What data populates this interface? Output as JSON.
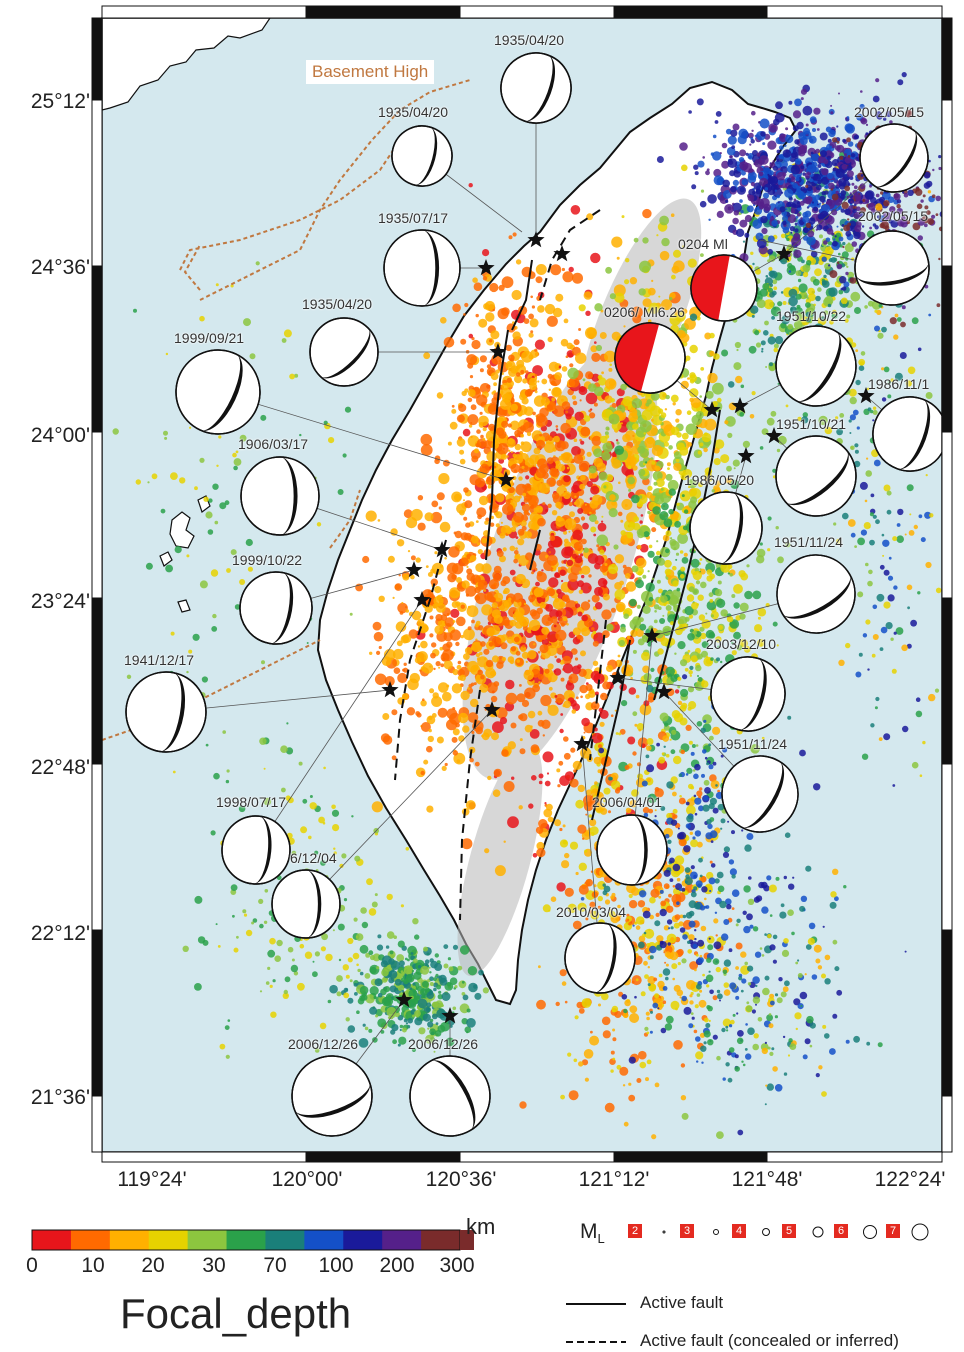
{
  "latitude_labels": [
    "25°12'",
    "24°36'",
    "24°00'",
    "23°24'",
    "22°48'",
    "22°12'",
    "21°36'"
  ],
  "longitude_labels": [
    "119°24'",
    "120°00'",
    "120°36'",
    "121°12'",
    "121°48'",
    "122°24'"
  ],
  "basement_high_label": "Basement High",
  "focal_mechanism_labels": [
    "1935/04/20",
    "1935/04/20",
    "1935/07/17",
    "1935/04/20",
    "1999/09/21",
    "1906/03/17",
    "1999/10/22",
    "1941/12/17",
    "1998/07/17",
    "6/12/04",
    "2006/12/26",
    "2006/12/26",
    "2010/03/04",
    "2006/04/01",
    "1951/11/24",
    "2003/12/10",
    "1951/11/24",
    "1986/05/20",
    "1951/10/21",
    "1986/11/1",
    "1951/10/22",
    "0206/ Ml6.26",
    "0204 Ml",
    "2002/05/15",
    "2002/05/15"
  ],
  "depth_legend": {
    "unit": "km",
    "ticks": [
      "0",
      "10",
      "20",
      "30",
      "70",
      "100",
      "200",
      "300"
    ],
    "title": "Focal_depth",
    "colors": [
      "#e8151b",
      "#ff6a00",
      "#ffb000",
      "#e6d200",
      "#8cc63f",
      "#2aa14a",
      "#1a7f7a",
      "#1450c8",
      "#1a1a9a",
      "#55208a",
      "#7a2b2b"
    ]
  },
  "magnitude_legend": {
    "title": "M",
    "subscript": "L",
    "values": [
      "2",
      "3",
      "4",
      "5",
      "6",
      "7"
    ]
  },
  "fault_legend": {
    "active": "Active fault",
    "concealed": "Active fault (concealed or inferred)"
  },
  "colors": {
    "sea": "#d4e8ee",
    "land": "#ffffff",
    "highlight_mechanism": "#e8151b",
    "basement_high": "#c07840"
  }
}
